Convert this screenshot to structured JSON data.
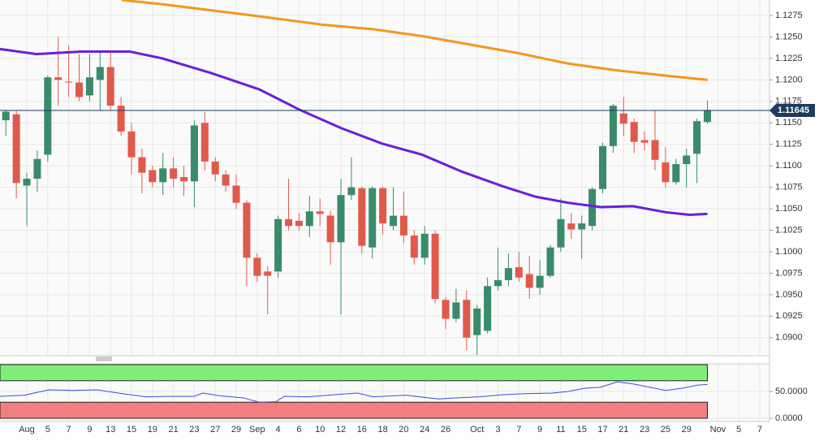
{
  "chart_data": {
    "type": "candlestick",
    "xlim": [
      -2.56,
      70.93
    ],
    "xticks": [
      {
        "value": 0,
        "label": "Aug"
      },
      {
        "value": 2,
        "label": "5"
      },
      {
        "value": 4,
        "label": "7"
      },
      {
        "value": 6,
        "label": "9"
      },
      {
        "value": 8,
        "label": "13"
      },
      {
        "value": 10,
        "label": "15"
      },
      {
        "value": 12,
        "label": "19"
      },
      {
        "value": 14,
        "label": "21"
      },
      {
        "value": 16,
        "label": "23"
      },
      {
        "value": 18,
        "label": "27"
      },
      {
        "value": 20,
        "label": "29"
      },
      {
        "value": 22,
        "label": "Sep"
      },
      {
        "value": 24,
        "label": "4"
      },
      {
        "value": 26,
        "label": "6"
      },
      {
        "value": 28,
        "label": "10"
      },
      {
        "value": 30,
        "label": "12"
      },
      {
        "value": 32,
        "label": "16"
      },
      {
        "value": 34,
        "label": "18"
      },
      {
        "value": 36,
        "label": "20"
      },
      {
        "value": 38,
        "label": "24"
      },
      {
        "value": 40,
        "label": "26"
      },
      {
        "value": 43,
        "label": "Oct"
      },
      {
        "value": 45,
        "label": "3"
      },
      {
        "value": 47,
        "label": "7"
      },
      {
        "value": 49,
        "label": "9"
      },
      {
        "value": 51,
        "label": "11"
      },
      {
        "value": 53,
        "label": "15"
      },
      {
        "value": 55,
        "label": "17"
      },
      {
        "value": 57,
        "label": "21"
      },
      {
        "value": 59,
        "label": "23"
      },
      {
        "value": 61,
        "label": "25"
      },
      {
        "value": 63,
        "label": "29"
      },
      {
        "value": 66,
        "label": "Nov"
      },
      {
        "value": 68,
        "label": "5"
      },
      {
        "value": 70,
        "label": "7"
      }
    ],
    "ylim": [
      1.0879,
      1.1293
    ],
    "yticks": [
      {
        "value": 1.09,
        "label": "1.0900"
      },
      1.0925,
      {
        "value": 1.095,
        "label": "1.0950"
      },
      1.0975,
      {
        "value": 1.1,
        "label": "1.1000"
      },
      1.1025,
      {
        "value": 1.105,
        "label": "1.1050"
      },
      1.1075,
      {
        "value": 1.11,
        "label": "1.1100"
      },
      1.1125,
      {
        "value": 1.115,
        "label": "1.1150"
      },
      1.1175,
      {
        "value": 1.12,
        "label": "1.1200"
      },
      1.1225,
      {
        "value": 1.125,
        "label": "1.1250"
      },
      1.1275
    ],
    "grid": true,
    "up_color": "#3a8a6c",
    "down_color": "#e05a4c",
    "x": [
      -2,
      -1,
      0,
      1,
      2,
      3,
      4,
      5,
      6,
      7,
      8,
      9,
      10,
      11,
      12,
      13,
      14,
      15,
      16,
      17,
      18,
      19,
      20,
      21,
      22,
      23,
      24,
      25,
      26,
      27,
      28,
      29,
      30,
      31,
      32,
      33,
      34,
      35,
      36,
      37,
      38,
      39,
      40,
      41,
      42,
      43,
      44,
      45,
      46,
      47,
      48,
      49,
      50,
      51,
      52,
      53,
      54,
      55,
      56,
      57,
      58,
      59,
      60,
      61,
      62,
      63,
      64,
      65
    ],
    "open": [
      1.1153,
      1.116,
      1.1077,
      1.1085,
      1.1113,
      1.1203,
      1.1198,
      1.1197,
      1.1182,
      1.12,
      1.1215,
      1.117,
      1.114,
      1.111,
      1.1095,
      1.1081,
      1.1097,
      1.1087,
      1.1082,
      1.115,
      1.1105,
      1.109,
      1.1077,
      1.1057,
      1.0993,
      1.0977,
      1.0977,
      1.1038,
      1.1036,
      1.103,
      1.1047,
      1.1042,
      1.1011,
      1.1066,
      1.1074,
      1.1005,
      1.1074,
      1.103,
      1.1042,
      1.1019,
      1.0993,
      1.1021,
      1.0944,
      1.0922,
      1.0944,
      1.0903,
      1.0908,
      1.096,
      1.0967,
      1.0982,
      1.0974,
      1.0958,
      1.0972,
      1.1005,
      1.1033,
      1.1026,
      1.103,
      1.1073,
      1.1123,
      1.1161,
      1.1151,
      1.113,
      1.113,
      1.1104,
      1.1081,
      1.1102,
      1.1114,
      1.1151
    ],
    "high": [
      1.1165,
      1.1165,
      1.1092,
      1.1118,
      1.1205,
      1.125,
      1.124,
      1.123,
      1.123,
      1.1232,
      1.1232,
      1.118,
      1.115,
      1.112,
      1.11,
      1.1115,
      1.111,
      1.11,
      1.1153,
      1.1163,
      1.111,
      1.1095,
      1.109,
      1.106,
      1.0998,
      1.0983,
      1.1042,
      1.1085,
      1.1045,
      1.1065,
      1.1062,
      1.1048,
      1.1085,
      1.111,
      1.1076,
      1.1076,
      1.1076,
      1.1075,
      1.107,
      1.1025,
      1.103,
      1.1025,
      1.0947,
      1.0957,
      1.0955,
      1.0938,
      1.097,
      1.1005,
      1.0998,
      1.1,
      1.0995,
      1.099,
      1.1008,
      1.1062,
      1.1045,
      1.1042,
      1.1075,
      1.1127,
      1.1172,
      1.118,
      1.1155,
      1.114,
      1.1165,
      1.1122,
      1.1108,
      1.112,
      1.1155,
      1.1176
    ],
    "low": [
      1.1135,
      1.1062,
      1.103,
      1.107,
      1.1105,
      1.117,
      1.118,
      1.1175,
      1.1175,
      1.1165,
      1.1165,
      1.1135,
      1.109,
      1.1068,
      1.1075,
      1.1066,
      1.1075,
      1.1065,
      1.1052,
      1.1095,
      1.1082,
      1.107,
      1.105,
      1.096,
      1.0965,
      1.0927,
      1.097,
      1.1025,
      1.1025,
      1.1017,
      1.103,
      1.0985,
      1.0927,
      1.106,
      1.0998,
      1.0992,
      1.102,
      1.1025,
      1.101,
      1.0985,
      1.0985,
      1.094,
      1.091,
      1.0918,
      1.0885,
      1.088,
      1.0905,
      1.0955,
      1.096,
      1.0965,
      1.0945,
      1.095,
      1.097,
      1.1,
      1.1015,
      1.0992,
      1.1025,
      1.1068,
      1.1115,
      1.1135,
      1.1115,
      1.1118,
      1.1095,
      1.1075,
      1.1078,
      1.1075,
      1.108,
      1.1149
    ],
    "close": [
      1.1163,
      1.108,
      1.1085,
      1.1108,
      1.1203,
      1.12,
      1.1197,
      1.118,
      1.1203,
      1.1215,
      1.117,
      1.114,
      1.111,
      1.1092,
      1.1081,
      1.1097,
      1.1085,
      1.1082,
      1.1147,
      1.1105,
      1.109,
      1.1077,
      1.1057,
      1.0993,
      1.0972,
      1.0972,
      1.1038,
      1.103,
      1.103,
      1.1047,
      1.1044,
      1.1011,
      1.1066,
      1.1075,
      1.1007,
      1.1074,
      1.1033,
      1.1042,
      1.1019,
      1.0993,
      1.1021,
      1.0945,
      1.0922,
      1.0941,
      1.09,
      1.0934,
      1.096,
      1.0967,
      1.0981,
      1.097,
      1.0958,
      1.0972,
      1.1005,
      1.1038,
      1.1026,
      1.1033,
      1.1073,
      1.1123,
      1.117,
      1.1149,
      1.1128,
      1.1127,
      1.1107,
      1.1081,
      1.1102,
      1.1112,
      1.1152,
      1.1165
    ],
    "series": [
      {
        "color": "#f5961e",
        "x": [
          9.07,
          12.95,
          17.6,
          22.2,
          28.4,
          33.1,
          37.75,
          42.4,
          47,
          51.7,
          56.4,
          61,
          65
        ],
        "values": [
          1.1293,
          1.1288,
          1.1281,
          1.1274,
          1.1264,
          1.1259,
          1.1251,
          1.1241,
          1.1231,
          1.1219,
          1.1211,
          1.1205,
          1.12
        ]
      },
      {
        "color": "#6a1fd8",
        "x": [
          -2.56,
          0.93,
          5.19,
          9.84,
          12.95,
          17.6,
          22.2,
          26.1,
          30,
          33.9,
          37.75,
          41.6,
          45.5,
          48.6,
          51.7,
          54.8,
          57.9,
          61,
          63.3,
          65
        ],
        "values": [
          1.1236,
          1.123,
          1.1233,
          1.1233,
          1.1225,
          1.1208,
          1.1189,
          1.1165,
          1.1144,
          1.1126,
          1.1113,
          1.1093,
          1.1076,
          1.1064,
          1.1057,
          1.1052,
          1.1053,
          1.1046,
          1.1043,
          1.1044
        ]
      }
    ],
    "last_price": 1.11645,
    "last_price_color": "#1e3a5c",
    "indicator": {
      "type": "line",
      "ylim": [
        -6,
        101.5
      ],
      "yticks": [
        {
          "value": 0,
          "label": "0.0000"
        },
        {
          "value": 50,
          "label": "50.0000"
        }
      ],
      "bands": [
        {
          "from": 70,
          "to": 100,
          "color": "#7ef07a"
        },
        {
          "from": 0,
          "to": 30,
          "color": "#f27f7f"
        }
      ],
      "series": [
        {
          "color": "#3a4fd8",
          "x": [
            -2.56,
            -0.23,
            2.09,
            4.42,
            6.74,
            9.07,
            11.4,
            13.7,
            16,
            16.8,
            18.4,
            20.7,
            22.2,
            23.8,
            24.6,
            26.9,
            30,
            31.6,
            33.1,
            36.2,
            39.3,
            40.9,
            43.2,
            45.5,
            47.8,
            50.2,
            51.7,
            53.3,
            54.8,
            56.4,
            57.9,
            59.5,
            61,
            62.6,
            64.1,
            65
          ],
          "values": [
            41,
            43,
            53,
            52,
            53,
            46,
            40,
            41,
            41,
            47,
            42,
            38,
            30,
            31,
            41,
            40,
            45,
            47,
            40,
            43,
            36,
            38,
            40,
            44,
            46,
            47,
            50,
            56,
            58,
            68,
            64,
            58,
            52,
            56,
            62,
            63
          ]
        }
      ]
    }
  }
}
